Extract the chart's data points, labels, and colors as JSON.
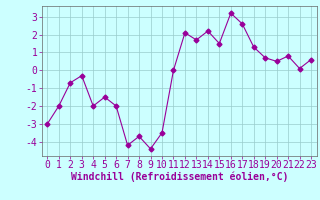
{
  "x": [
    0,
    1,
    2,
    3,
    4,
    5,
    6,
    7,
    8,
    9,
    10,
    11,
    12,
    13,
    14,
    15,
    16,
    17,
    18,
    19,
    20,
    21,
    22,
    23
  ],
  "y": [
    -3.0,
    -2.0,
    -0.7,
    -0.3,
    -2.0,
    -1.5,
    -2.0,
    -4.2,
    -3.7,
    -4.4,
    -3.5,
    0.0,
    2.1,
    1.7,
    2.2,
    1.5,
    3.2,
    2.6,
    1.3,
    0.7,
    0.5,
    0.8,
    0.1,
    0.6
  ],
  "line_color": "#990099",
  "marker": "D",
  "marker_size": 2.5,
  "bg_color": "#ccffff",
  "grid_color": "#99cccc",
  "xlabel": "Windchill (Refroidissement éolien,°C)",
  "xlabel_color": "#990099",
  "tick_color": "#990099",
  "ylim": [
    -4.8,
    3.6
  ],
  "yticks": [
    -4,
    -3,
    -2,
    -1,
    0,
    1,
    2,
    3
  ],
  "xlim": [
    -0.5,
    23.5
  ],
  "xticks": [
    0,
    1,
    2,
    3,
    4,
    5,
    6,
    7,
    8,
    9,
    10,
    11,
    12,
    13,
    14,
    15,
    16,
    17,
    18,
    19,
    20,
    21,
    22,
    23
  ],
  "spine_color": "#666666",
  "figure_bg": "#ccffff",
  "tick_fontsize": 7,
  "xlabel_fontsize": 7
}
